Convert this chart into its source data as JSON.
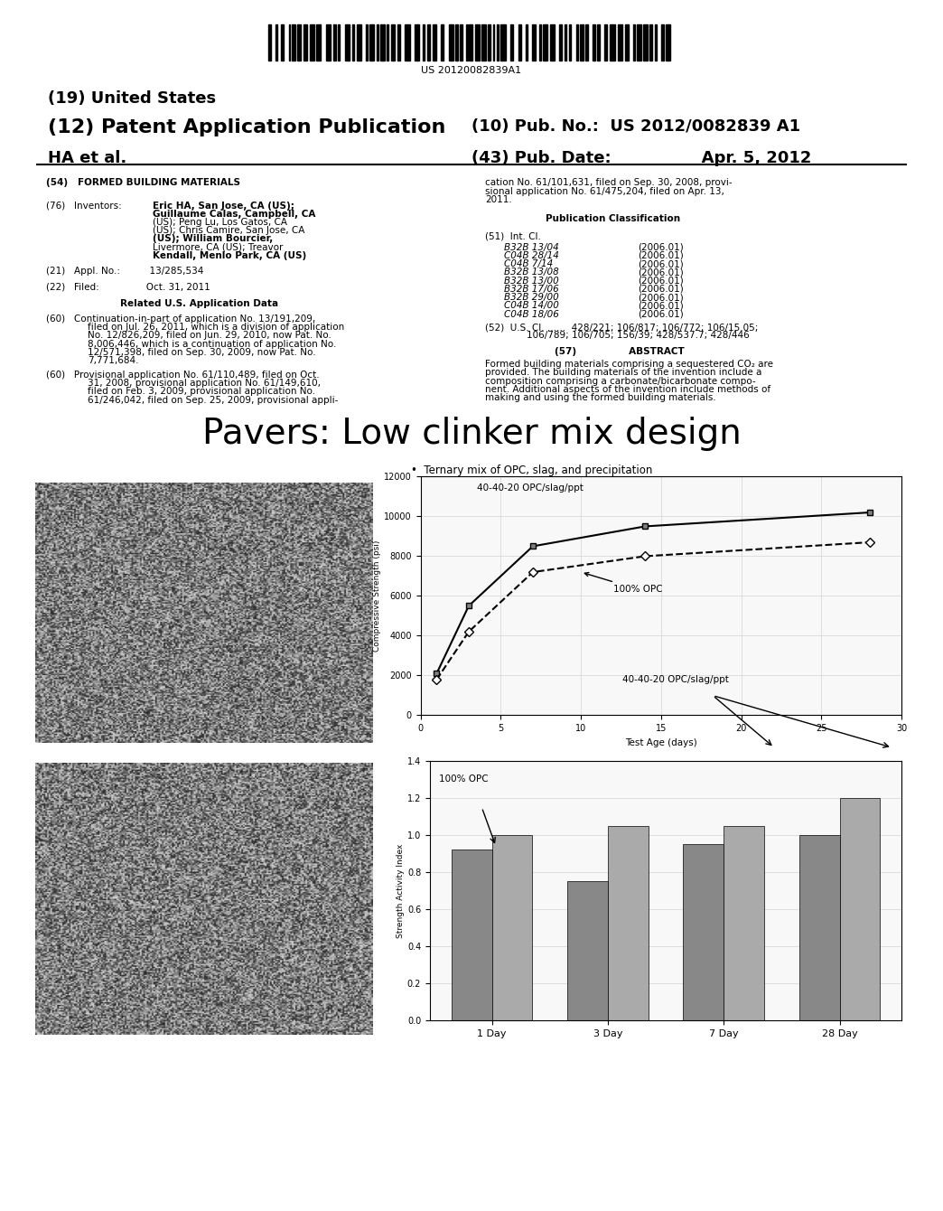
{
  "title_large": "Pavers: Low clinker mix design",
  "header": {
    "barcode_text": "US 20120082839A1",
    "country_19": "(19) United States",
    "type_12": "(12) Patent Application Publication",
    "authors": "HA et al.",
    "pubno_10": "(10) Pub. No.:  US 2012/0082839 A1",
    "pubdate_43": "(43) Pub. Date:                Apr. 5, 2012"
  },
  "chart1": {
    "title": "40-40-20 OPC/slag/ppt",
    "label_opc": "100% OPC",
    "ylabel": "Compressive Strength (psi)",
    "xlabel": "Test Age (days)",
    "xlim": [
      0,
      30
    ],
    "ylim": [
      0,
      12000
    ],
    "yticks": [
      0,
      2000,
      4000,
      6000,
      8000,
      10000,
      12000
    ],
    "xticks": [
      0,
      5,
      10,
      15,
      20,
      25,
      30
    ],
    "series1_x": [
      1,
      3,
      7,
      14,
      28
    ],
    "series1_y": [
      2100,
      5500,
      8500,
      9500,
      10200
    ],
    "series2_x": [
      1,
      3,
      7,
      14,
      28
    ],
    "series2_y": [
      1800,
      4200,
      7200,
      8000,
      8700
    ]
  },
  "chart2": {
    "title": "40-40-20 OPC/slag/ppt",
    "label_opc": "100% OPC",
    "ylabel": "Strength Activity Index",
    "xlim_labels": [
      "1 Day",
      "3 Day",
      "7 Day",
      "28 Day"
    ],
    "ylim": [
      0,
      1.4
    ],
    "yticks": [
      0,
      0.2,
      0.4,
      0.6,
      0.8,
      1.0,
      1.2,
      1.4
    ],
    "opc_vals": [
      0.92,
      0.75,
      0.95,
      1.0
    ],
    "mix_vals": [
      1.0,
      1.05,
      1.05,
      1.2
    ],
    "bar_color_opc": "#888888",
    "bar_color_mix": "#aaaaaa"
  },
  "bg_color": "#ffffff"
}
